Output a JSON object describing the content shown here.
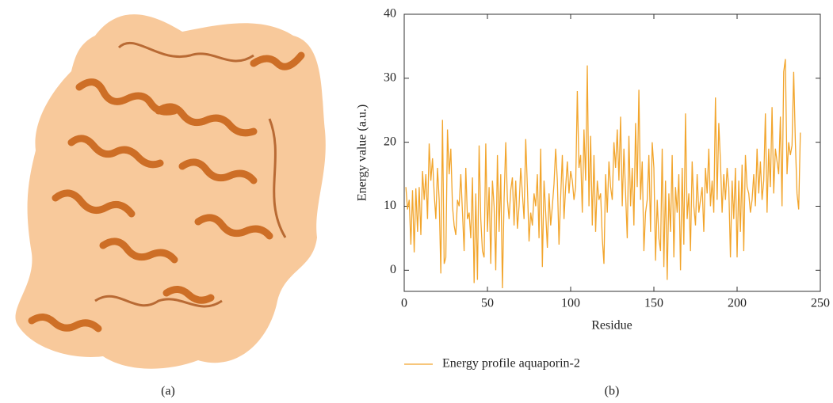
{
  "chart_data": {
    "type": "line",
    "xlabel": "Residue",
    "ylabel": "Energy value (a.u.)",
    "xlim": [
      0,
      250
    ],
    "xticks": [
      0,
      50,
      100,
      150,
      200,
      250
    ],
    "ylim": [
      -3.3,
      40
    ],
    "yticks": [
      0,
      10,
      20,
      30,
      40
    ],
    "legend": "bottom-left",
    "x": [
      1,
      2,
      3,
      4,
      5,
      6,
      7,
      8,
      9,
      10,
      11,
      12,
      13,
      14,
      15,
      16,
      17,
      18,
      19,
      20,
      21,
      22,
      23,
      24,
      25,
      26,
      27,
      28,
      29,
      30,
      31,
      32,
      33,
      34,
      35,
      36,
      37,
      38,
      39,
      40,
      41,
      42,
      43,
      44,
      45,
      46,
      47,
      48,
      49,
      50,
      51,
      52,
      53,
      54,
      55,
      56,
      57,
      58,
      59,
      60,
      61,
      62,
      63,
      64,
      65,
      66,
      67,
      68,
      69,
      70,
      71,
      72,
      73,
      74,
      75,
      76,
      77,
      78,
      79,
      80,
      81,
      82,
      83,
      84,
      85,
      86,
      87,
      88,
      89,
      90,
      91,
      92,
      93,
      94,
      95,
      96,
      97,
      98,
      99,
      100,
      101,
      102,
      103,
      104,
      105,
      106,
      107,
      108,
      109,
      110,
      111,
      112,
      113,
      114,
      115,
      116,
      117,
      118,
      119,
      120,
      121,
      122,
      123,
      124,
      125,
      126,
      127,
      128,
      129,
      130,
      131,
      132,
      133,
      134,
      135,
      136,
      137,
      138,
      139,
      140,
      141,
      142,
      143,
      144,
      145,
      146,
      147,
      148,
      149,
      150,
      151,
      152,
      153,
      154,
      155,
      156,
      157,
      158,
      159,
      160,
      161,
      162,
      163,
      164,
      165,
      166,
      167,
      168,
      169,
      170,
      171,
      172,
      173,
      174,
      175,
      176,
      177,
      178,
      179,
      180,
      181,
      182,
      183,
      184,
      185,
      186,
      187,
      188,
      189,
      190,
      191,
      192,
      193,
      194,
      195,
      196,
      197,
      198,
      199,
      200,
      201,
      202,
      203,
      204,
      205,
      206,
      207,
      208,
      209,
      210,
      211,
      212,
      213,
      214,
      215,
      216,
      217,
      218,
      219,
      220,
      221,
      222,
      223,
      224,
      225,
      226,
      227,
      228,
      229,
      230,
      231,
      232,
      233,
      234,
      235,
      236,
      237,
      238
    ],
    "series": [
      {
        "name": "Energy profile aquaporin-2",
        "color": "#f2a52c",
        "values": [
          13,
          9.5,
          11,
          4,
          12.5,
          2.8,
          12.8,
          6,
          13,
          5.5,
          15.5,
          11,
          15,
          8,
          19.8,
          14,
          17.5,
          12,
          8,
          16,
          11,
          -0.5,
          23.5,
          1,
          2,
          22,
          15,
          19,
          10,
          7,
          5.5,
          11,
          10,
          15,
          9,
          3,
          16,
          8,
          9,
          5,
          14.5,
          -2,
          12,
          -1.5,
          19.5,
          8,
          3,
          2,
          19.8,
          6,
          13,
          1,
          14,
          10,
          0,
          18,
          6,
          15,
          -2.8,
          11,
          20,
          11,
          8,
          12.5,
          14.5,
          7,
          14,
          6.5,
          10,
          16,
          12,
          8,
          20.5,
          13,
          4.5,
          9,
          7,
          12,
          10,
          15,
          5,
          19,
          0.5,
          14,
          9,
          3.5,
          12,
          7,
          10,
          13.5,
          19,
          14,
          4,
          11.5,
          18,
          8,
          13,
          17,
          12,
          15.5,
          14,
          11,
          13,
          28,
          16,
          18,
          9,
          22,
          14,
          32,
          10,
          21,
          7,
          18,
          6,
          14,
          11,
          12,
          5,
          1,
          15,
          9,
          17,
          13,
          11,
          20,
          16,
          22,
          14,
          24,
          10,
          19,
          12,
          5,
          21,
          10,
          16,
          7,
          23,
          13,
          28.2,
          11,
          17,
          3,
          9,
          11,
          18,
          6,
          20,
          16,
          1.5,
          11,
          5,
          3,
          19,
          0.5,
          14,
          -1.5,
          12,
          6,
          18,
          2,
          13,
          9,
          15,
          0,
          16,
          4,
          24.5,
          8,
          12,
          3,
          17,
          10,
          7,
          15,
          9,
          11,
          13,
          6,
          16,
          12,
          19,
          10,
          14,
          9,
          27,
          11,
          23,
          17,
          9,
          15,
          11,
          16,
          13,
          2,
          14,
          8,
          16,
          2,
          14,
          6,
          16.5,
          3,
          18,
          13,
          12,
          9,
          11,
          15,
          10,
          19,
          12,
          17,
          11,
          14,
          24.5,
          9,
          19,
          13,
          25.5,
          12,
          19,
          17,
          15,
          24,
          10,
          31,
          33,
          15,
          20,
          18,
          19.5,
          31,
          20,
          12,
          9.5,
          21.5
        ]
      }
    ]
  },
  "captions": [
    "(a)",
    "(b)"
  ]
}
